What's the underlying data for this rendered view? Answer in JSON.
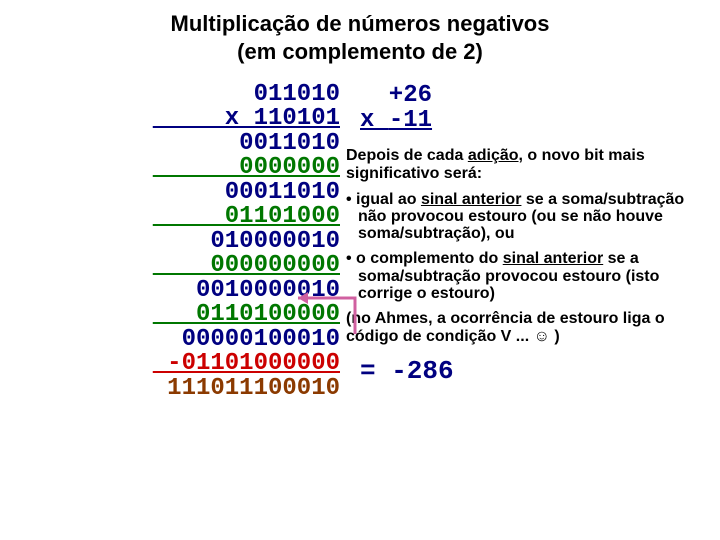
{
  "title_line1": "Multiplicação de números negativos",
  "title_line2": "(em complemento de 2)",
  "colors": {
    "blue": "#000080",
    "green": "#007700",
    "red": "#cc0000",
    "brown": "#8b3a00",
    "arrow": "#d060a0"
  },
  "multiplication": {
    "multiplicand": "011010",
    "multiplier_prefix": "x ",
    "multiplier": "110101",
    "rows": [
      {
        "text": "0011010",
        "class": "blue"
      },
      {
        "text": "0000000",
        "class": "green"
      },
      {
        "text": "00011010",
        "class": "blue"
      },
      {
        "text": "01101000",
        "class": "green"
      },
      {
        "text": "010000010",
        "class": "blue"
      },
      {
        "text": "000000000",
        "class": "green"
      },
      {
        "text": "0010000010",
        "class": "blue"
      },
      {
        "text": "0110100000",
        "class": "green"
      },
      {
        "text": "00000100010",
        "class": "blue"
      },
      {
        "text": "-01101000000",
        "class": "red"
      },
      {
        "text": "111011100010",
        "class": "brown"
      }
    ],
    "underline_after_indices": [
      1,
      3,
      5,
      7,
      9,
      11
    ]
  },
  "decimal": {
    "line1": "  +26",
    "line2_prefix": "x ",
    "line2": "-11"
  },
  "notes": {
    "intro_a": "Depois de cada ",
    "intro_u": "adição",
    "intro_b": ", o novo bit mais significativo será:",
    "bullet1_a": "• igual ao ",
    "bullet1_u": "sinal anterior",
    "bullet1_b": " se a soma/subtração não provocou estouro (ou se não houve soma/subtração), ou",
    "bullet2_a": "• o complemento do ",
    "bullet2_u": "sinal anterior",
    "bullet2_b": " se a soma/subtração provocou estouro (isto corrige o estouro)",
    "paren": "(no Ahmes, a ocorrência de estouro liga o código de condição V ... ☺ )"
  },
  "result": "= -286"
}
